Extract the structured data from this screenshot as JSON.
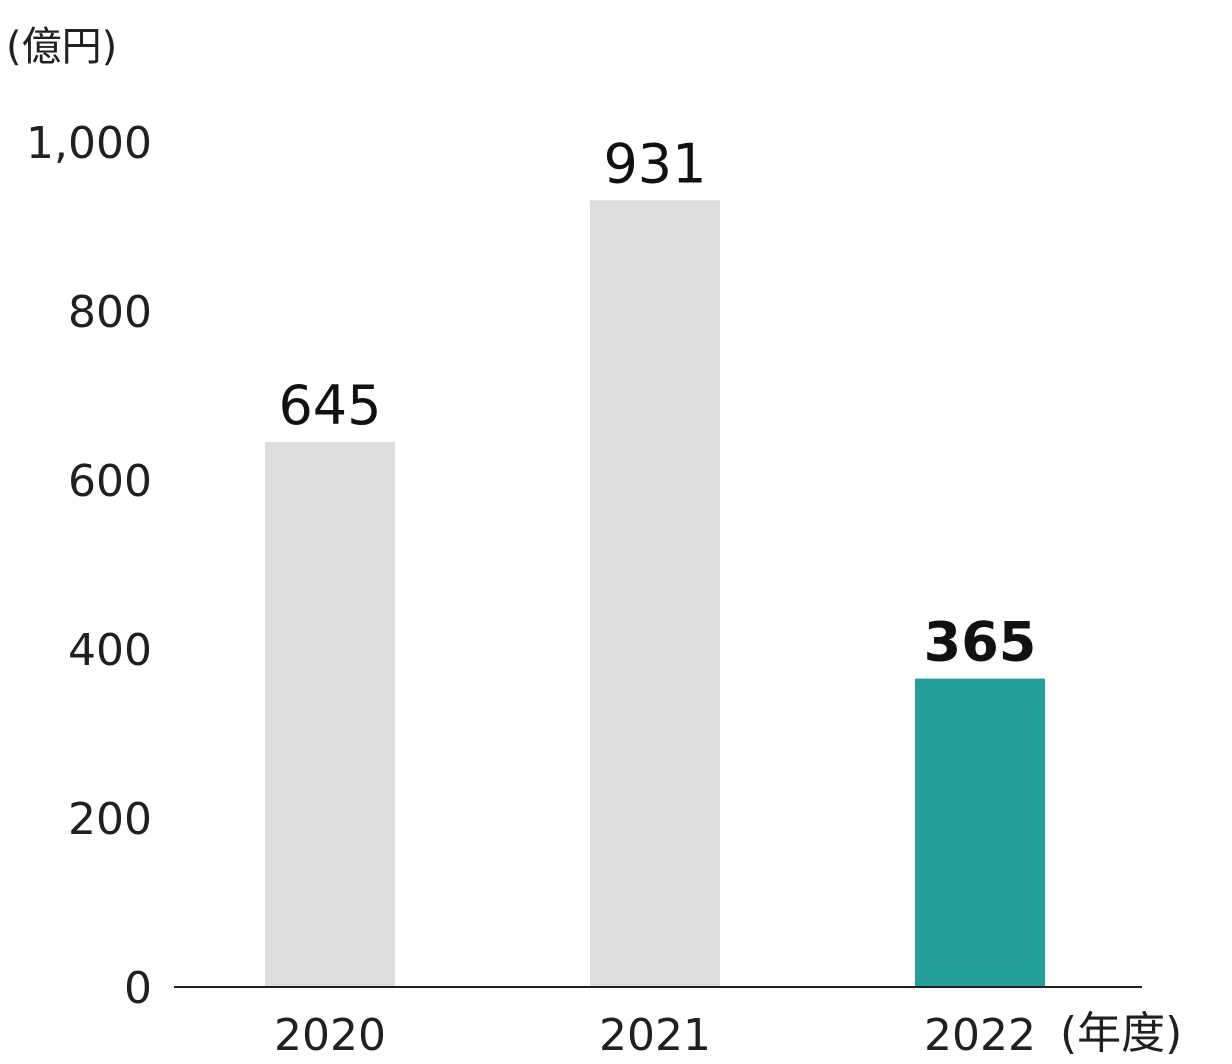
{
  "chart_data": {
    "type": "bar",
    "y_unit": "(億円)",
    "x_unit": "(年度)",
    "categories": [
      "2020",
      "2021",
      "2022"
    ],
    "values": [
      645,
      931,
      365
    ],
    "value_labels": [
      "645",
      "931",
      "365"
    ],
    "highlight_index": 2,
    "ylim": [
      0,
      1000
    ],
    "y_ticks": [
      0,
      200,
      400,
      600,
      800,
      1000
    ],
    "y_tick_labels": [
      "0",
      "200",
      "400",
      "600",
      "800",
      "1,000"
    ],
    "grid": false,
    "legend": "none",
    "colors": {
      "bar": "#dcdddd",
      "highlight": "#239e98",
      "axis": "#231f20",
      "text": "#231f20"
    }
  }
}
